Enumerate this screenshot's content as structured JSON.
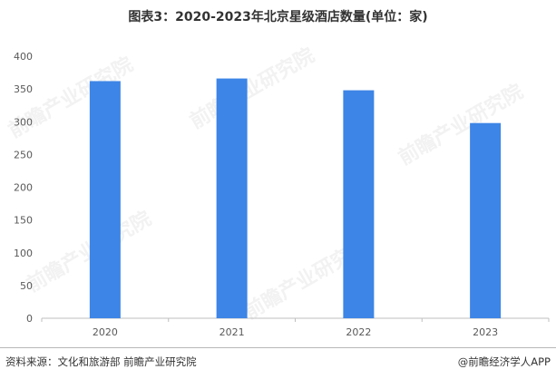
{
  "title": "图表3：2020-2023年北京星级酒店数量(单位：家)",
  "chart_data": {
    "type": "bar",
    "categories": [
      "2020",
      "2021",
      "2022",
      "2023"
    ],
    "values": [
      362,
      366,
      348,
      298
    ],
    "ylim": [
      0,
      400
    ],
    "yticks": [
      0,
      50,
      100,
      150,
      200,
      250,
      300,
      350,
      400
    ],
    "bar_color": "#3d85e6",
    "grid": false,
    "legend": "none"
  },
  "watermark": "前瞻产业研究院",
  "footer": {
    "source": "资料来源：文化和旅游部 前瞻产业研究院",
    "brand": "@前瞻经济学人APP"
  }
}
